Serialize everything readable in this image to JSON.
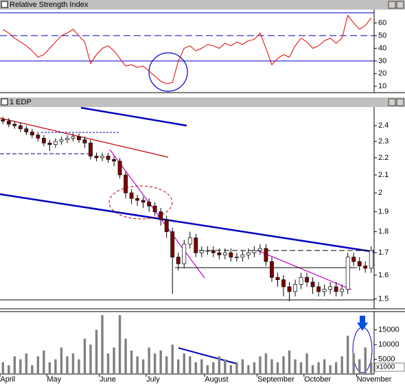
{
  "chart_data": [
    {
      "type": "line",
      "title": "Relative Strength Index",
      "color": "#e00000",
      "values": [
        55,
        52,
        48,
        45,
        42,
        38,
        33,
        35,
        40,
        45,
        50,
        52,
        55,
        50,
        45,
        28,
        35,
        40,
        42,
        38,
        32,
        26,
        27,
        25,
        26,
        22,
        18,
        14,
        12,
        13,
        30,
        40,
        42,
        38,
        40,
        43,
        42,
        40,
        44,
        42,
        45,
        43,
        46,
        47,
        52,
        40,
        27,
        32,
        35,
        33,
        42,
        48,
        45,
        40,
        42,
        46,
        48,
        44,
        48,
        66,
        60,
        55,
        58,
        64
      ],
      "ylim": [
        5,
        70
      ],
      "yticks": [
        10,
        20,
        30,
        40,
        50,
        60
      ],
      "reference_lines": [
        {
          "value": 68,
          "style": "solid"
        },
        {
          "value": 50,
          "style": "dashed"
        },
        {
          "value": 30,
          "style": "solid"
        }
      ],
      "reference_color": "#0000c0"
    },
    {
      "type": "candlestick",
      "title": "1 EDP",
      "log": true,
      "up_color": "#ffffff",
      "down_color": "#800000",
      "open": [
        2.44,
        2.43,
        2.41,
        2.4,
        2.38,
        2.36,
        2.34,
        2.32,
        2.29,
        2.28,
        2.3,
        2.31,
        2.32,
        2.33,
        2.31,
        2.29,
        2.21,
        2.2,
        2.21,
        2.19,
        2.18,
        2.1,
        2.0,
        1.97,
        1.96,
        1.95,
        1.93,
        1.9,
        1.86,
        1.8,
        1.68,
        1.65,
        1.74,
        1.77,
        1.7,
        1.71,
        1.71,
        1.7,
        1.69,
        1.7,
        1.68,
        1.68,
        1.69,
        1.7,
        1.71,
        1.72,
        1.66,
        1.59,
        1.58,
        1.55,
        1.53,
        1.56,
        1.59,
        1.57,
        1.55,
        1.53,
        1.54,
        1.55,
        1.53,
        1.54,
        1.68,
        1.66,
        1.64,
        1.63
      ],
      "high": [
        2.46,
        2.45,
        2.43,
        2.42,
        2.4,
        2.38,
        2.36,
        2.34,
        2.31,
        2.32,
        2.33,
        2.34,
        2.35,
        2.35,
        2.33,
        2.31,
        2.23,
        2.23,
        2.23,
        2.21,
        2.2,
        2.12,
        2.02,
        1.99,
        1.98,
        1.97,
        1.95,
        1.92,
        1.88,
        1.82,
        1.7,
        1.76,
        1.8,
        1.79,
        1.73,
        1.73,
        1.73,
        1.72,
        1.72,
        1.72,
        1.7,
        1.71,
        1.72,
        1.73,
        1.74,
        1.74,
        1.68,
        1.61,
        1.6,
        1.57,
        1.58,
        1.61,
        1.61,
        1.59,
        1.57,
        1.56,
        1.57,
        1.57,
        1.56,
        1.7,
        1.7,
        1.68,
        1.66,
        1.73
      ],
      "low": [
        2.41,
        2.39,
        2.38,
        2.36,
        2.34,
        2.32,
        2.3,
        2.27,
        2.24,
        2.26,
        2.28,
        2.29,
        2.3,
        2.29,
        2.26,
        2.19,
        2.18,
        2.18,
        2.17,
        2.15,
        2.08,
        1.97,
        1.94,
        1.93,
        1.92,
        1.9,
        1.88,
        1.83,
        1.77,
        1.52,
        1.62,
        1.63,
        1.72,
        1.68,
        1.68,
        1.69,
        1.68,
        1.67,
        1.67,
        1.66,
        1.66,
        1.66,
        1.67,
        1.68,
        1.69,
        1.64,
        1.57,
        1.55,
        1.51,
        1.49,
        1.51,
        1.54,
        1.55,
        1.52,
        1.51,
        1.51,
        1.52,
        1.51,
        1.51,
        1.52,
        1.64,
        1.62,
        1.61,
        1.61
      ],
      "close": [
        2.43,
        2.41,
        2.4,
        2.38,
        2.36,
        2.34,
        2.32,
        2.29,
        2.28,
        2.3,
        2.31,
        2.32,
        2.33,
        2.31,
        2.29,
        2.21,
        2.2,
        2.21,
        2.19,
        2.18,
        2.1,
        2.0,
        1.97,
        1.96,
        1.95,
        1.93,
        1.9,
        1.86,
        1.8,
        1.68,
        1.65,
        1.74,
        1.77,
        1.7,
        1.71,
        1.71,
        1.7,
        1.69,
        1.7,
        1.68,
        1.68,
        1.69,
        1.7,
        1.71,
        1.72,
        1.66,
        1.59,
        1.58,
        1.55,
        1.53,
        1.56,
        1.59,
        1.57,
        1.55,
        1.53,
        1.54,
        1.55,
        1.53,
        1.54,
        1.68,
        1.66,
        1.64,
        1.63,
        1.71
      ],
      "ylim": [
        1.46,
        2.52
      ],
      "yticks": [
        1.5,
        1.6,
        1.7,
        1.8,
        1.9,
        2.0,
        2.1,
        2.2,
        2.3,
        2.4
      ]
    },
    {
      "type": "bar",
      "color": "#808080",
      "unit_label": "x1000",
      "categories": [
        "April",
        null,
        null,
        null,
        null,
        null,
        null,
        null,
        "May",
        null,
        null,
        null,
        null,
        null,
        null,
        null,
        null,
        "June",
        null,
        null,
        null,
        null,
        null,
        null,
        null,
        "July",
        null,
        null,
        null,
        null,
        null,
        null,
        null,
        null,
        null,
        "August",
        null,
        null,
        null,
        null,
        null,
        null,
        null,
        null,
        "September",
        null,
        null,
        null,
        null,
        null,
        null,
        null,
        "October",
        null,
        null,
        null,
        null,
        null,
        null,
        null,
        null,
        "November",
        null,
        null
      ],
      "values": [
        4000,
        3000,
        6000,
        5000,
        7000,
        3000,
        6000,
        8000,
        4000,
        5000,
        9000,
        6000,
        7000,
        5000,
        12000,
        10000,
        15000,
        20000,
        7000,
        9000,
        20000,
        12000,
        8000,
        6000,
        5000,
        9000,
        7000,
        8000,
        6000,
        10000,
        5000,
        7000,
        6000,
        4000,
        5000,
        3000,
        4000,
        6000,
        5000,
        3000,
        4000,
        5000,
        3000,
        4000,
        6000,
        7000,
        5000,
        4000,
        6000,
        8000,
        5000,
        4000,
        7000,
        3000,
        4000,
        5000,
        3000,
        4000,
        6000,
        13000,
        7000,
        5000,
        9000,
        4000
      ],
      "ylim": [
        0,
        21000
      ],
      "yticks": [
        5000,
        10000,
        15000
      ]
    }
  ]
}
